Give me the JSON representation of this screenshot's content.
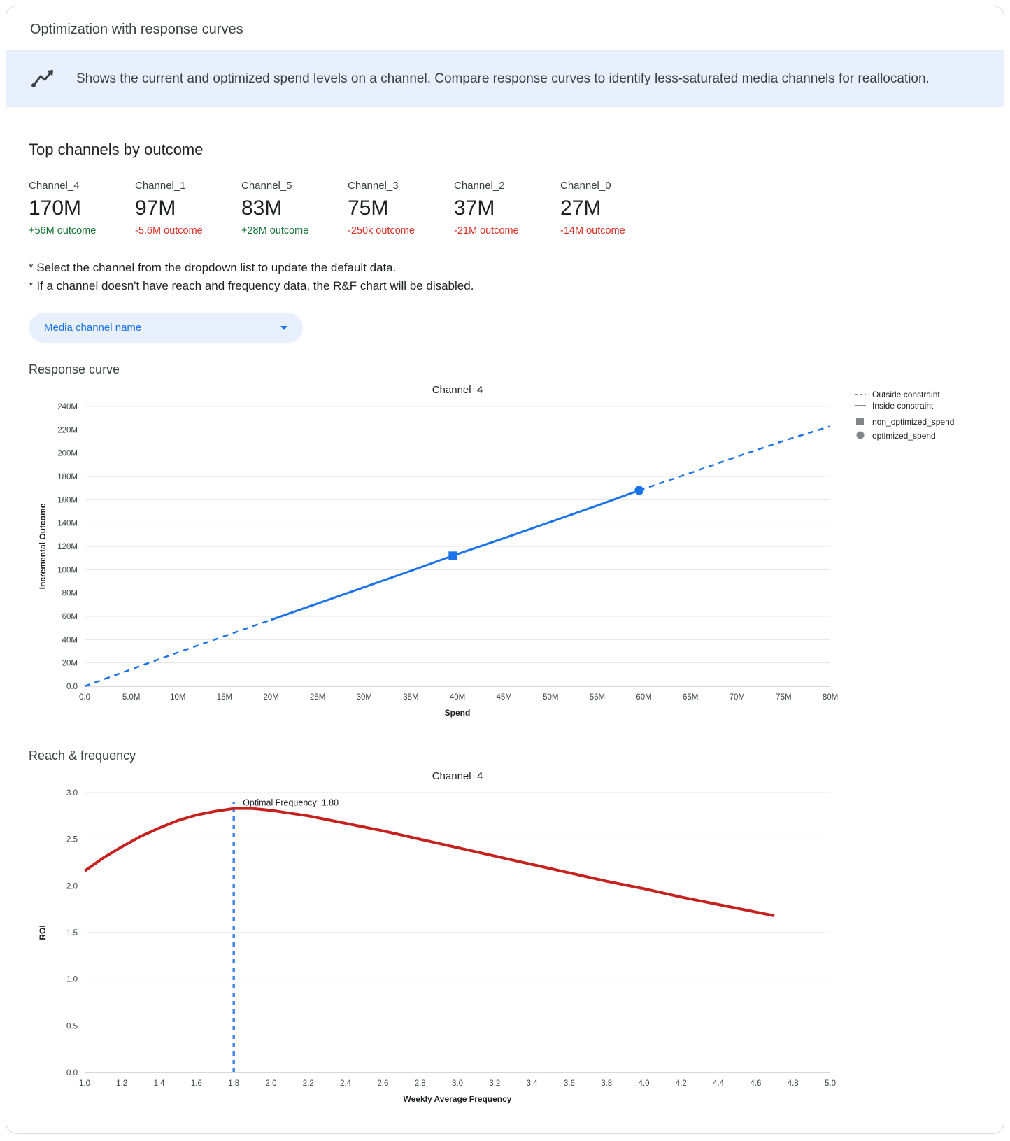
{
  "page": {
    "title": "Optimization with response curves",
    "banner_text": "Shows the current and optimized spend levels on a channel. Compare response curves to identify less-saturated media channels for reallocation."
  },
  "colors": {
    "positive": "#137333",
    "negative": "#d93025",
    "accent_blue": "#1a73e8",
    "banner_bg": "#e8f0fe",
    "line_blue": "#1a73e8",
    "line_red": "#c5221f",
    "vline_blue": "#4285f4"
  },
  "top_channels": {
    "heading": "Top channels by outcome",
    "cards": [
      {
        "name": "Channel_4",
        "value": "170M",
        "delta": "+56M outcome",
        "direction": "positive"
      },
      {
        "name": "Channel_1",
        "value": "97M",
        "delta": "-5.6M outcome",
        "direction": "negative"
      },
      {
        "name": "Channel_5",
        "value": "83M",
        "delta": "+28M outcome",
        "direction": "positive"
      },
      {
        "name": "Channel_3",
        "value": "75M",
        "delta": "-250k outcome",
        "direction": "negative"
      },
      {
        "name": "Channel_2",
        "value": "37M",
        "delta": "-21M outcome",
        "direction": "negative"
      },
      {
        "name": "Channel_0",
        "value": "27M",
        "delta": "-14M outcome",
        "direction": "negative"
      }
    ]
  },
  "notes": [
    "* Select the channel from the dropdown list to update the default data.",
    "* If a channel doesn't have reach and frequency data, the R&F chart will be disabled."
  ],
  "dropdown": {
    "label": "Media channel name"
  },
  "sections": {
    "response_curve": "Response curve",
    "reach_frequency": "Reach & frequency"
  },
  "chart_data": [
    {
      "id": "response-curve",
      "type": "line",
      "title": "Channel_4",
      "xlabel": "Spend",
      "ylabel": "Incremental Outcome",
      "units": "millions",
      "xlim": [
        0,
        80
      ],
      "ylim": [
        0,
        240
      ],
      "grid": "horizontal",
      "legend_position": "right",
      "x_ticks": [
        0,
        5,
        10,
        15,
        20,
        25,
        30,
        35,
        40,
        45,
        50,
        55,
        60,
        65,
        70,
        75,
        80
      ],
      "x_tick_labels": [
        "0.0",
        "5.0M",
        "10M",
        "15M",
        "20M",
        "25M",
        "30M",
        "35M",
        "40M",
        "45M",
        "50M",
        "55M",
        "60M",
        "65M",
        "70M",
        "75M",
        "80M"
      ],
      "y_ticks": [
        0,
        20,
        40,
        60,
        80,
        100,
        120,
        140,
        160,
        180,
        200,
        220,
        240
      ],
      "y_tick_labels": [
        "0.0",
        "20M",
        "40M",
        "60M",
        "80M",
        "100M",
        "120M",
        "140M",
        "160M",
        "180M",
        "200M",
        "220M",
        "240M"
      ],
      "series": [
        {
          "name": "Outside constraint",
          "style": "dashed",
          "color": "#1a73e8",
          "width": 2.5,
          "x": [
            0,
            5,
            10,
            15,
            20
          ],
          "y": [
            0,
            14.5,
            29,
            43,
            57
          ]
        },
        {
          "name": "Inside constraint",
          "style": "solid",
          "color": "#1a73e8",
          "width": 3,
          "x": [
            20,
            25,
            30,
            35,
            39.5,
            45,
            50,
            55,
            59.5
          ],
          "y": [
            57,
            71,
            85,
            99,
            112,
            127,
            141,
            155,
            168
          ]
        },
        {
          "name": "Outside constraint",
          "style": "dashed",
          "color": "#1a73e8",
          "width": 2.5,
          "x": [
            59.5,
            65,
            70,
            75,
            80
          ],
          "y": [
            168,
            183,
            197,
            210.5,
            223
          ]
        }
      ],
      "markers": [
        {
          "name": "non_optimized_spend",
          "shape": "square",
          "x": 39.5,
          "y": 112,
          "color": "#1a73e8"
        },
        {
          "name": "optimized_spend",
          "shape": "circle",
          "x": 59.5,
          "y": 168,
          "color": "#1a73e8"
        }
      ],
      "legend": [
        {
          "label": "Outside constraint",
          "glyph": "dashed-line"
        },
        {
          "label": "Inside constraint",
          "glyph": "solid-line"
        },
        {
          "label": "non_optimized_spend",
          "glyph": "square"
        },
        {
          "label": "optimized_spend",
          "glyph": "circle"
        }
      ]
    },
    {
      "id": "reach-frequency",
      "type": "line",
      "title": "Channel_4",
      "xlabel": "Weekly Average Frequency",
      "ylabel": "ROI",
      "xlim": [
        1.0,
        5.0
      ],
      "ylim": [
        0.0,
        3.0
      ],
      "grid": "horizontal",
      "legend_position": "none",
      "x_ticks": [
        1.0,
        1.2,
        1.4,
        1.6,
        1.8,
        2.0,
        2.2,
        2.4,
        2.6,
        2.8,
        3.0,
        3.2,
        3.4,
        3.6,
        3.8,
        4.0,
        4.2,
        4.4,
        4.6,
        4.8,
        5.0
      ],
      "x_tick_labels": [
        "1.0",
        "1.2",
        "1.4",
        "1.6",
        "1.8",
        "2.0",
        "2.2",
        "2.4",
        "2.6",
        "2.8",
        "3.0",
        "3.2",
        "3.4",
        "3.6",
        "3.8",
        "4.0",
        "4.2",
        "4.4",
        "4.6",
        "4.8",
        "5.0"
      ],
      "y_ticks": [
        0,
        0.5,
        1.0,
        1.5,
        2.0,
        2.5,
        3.0
      ],
      "y_tick_labels": [
        "0.0",
        "0.5",
        "1.0",
        "1.5",
        "2.0",
        "2.5",
        "3.0"
      ],
      "series": [
        {
          "name": "ROI curve",
          "style": "solid",
          "color": "#c5221f",
          "width": 4,
          "x": [
            1.0,
            1.1,
            1.2,
            1.3,
            1.4,
            1.5,
            1.6,
            1.7,
            1.8,
            1.9,
            2.0,
            2.2,
            2.4,
            2.6,
            2.8,
            3.0,
            3.2,
            3.4,
            3.6,
            3.8,
            4.0,
            4.2,
            4.4,
            4.6,
            4.7
          ],
          "y": [
            2.16,
            2.3,
            2.42,
            2.53,
            2.62,
            2.7,
            2.76,
            2.8,
            2.83,
            2.83,
            2.81,
            2.75,
            2.67,
            2.59,
            2.5,
            2.41,
            2.32,
            2.23,
            2.14,
            2.05,
            1.97,
            1.88,
            1.8,
            1.72,
            1.68
          ]
        }
      ],
      "vline": {
        "x": 1.8,
        "optimal_frequency": 1.8,
        "label": "Optimal Frequency: 1.80",
        "color": "#4285f4",
        "y_top": 2.9,
        "label_y": 2.86
      }
    }
  ]
}
